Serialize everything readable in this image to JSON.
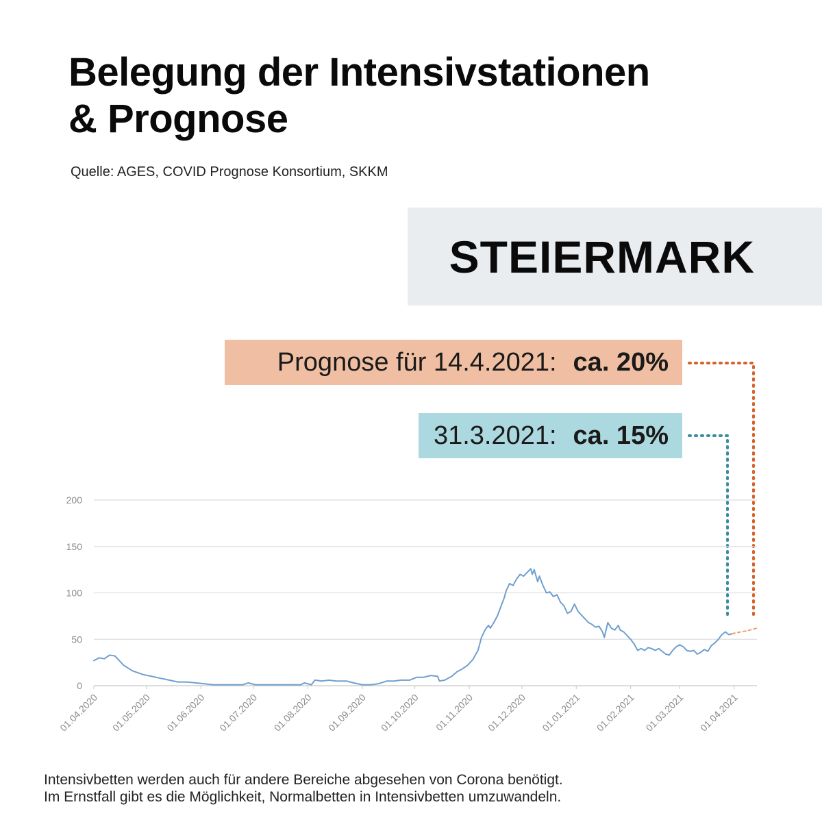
{
  "header": {
    "title_line1": "Belegung der Intensivstationen",
    "title_line2": "& Prognose",
    "source": "Quelle: AGES, COVID Prognose Konsortium, SKKM"
  },
  "region": "STEIERMARK",
  "callouts": {
    "forecast": {
      "label": "Prognose für 14.4.2021:",
      "value": "ca. 20%",
      "color": "#f0bfa3",
      "line_color": "#d4622a"
    },
    "current": {
      "label": "31.3.2021:",
      "value": "ca. 15%",
      "color": "#acd8df",
      "line_color": "#3a8ea0"
    }
  },
  "footnote": {
    "line1": "Intensivbetten werden auch für andere Bereiche abgesehen von Corona benötigt.",
    "line2": "Im Ernstfall gibt es die Möglichkeit, Normalbetten in Intensivbetten umzuwandeln."
  },
  "chart_data": {
    "type": "line",
    "title": "",
    "xlabel": "",
    "ylabel": "",
    "ylim": [
      0,
      200
    ],
    "yticks": [
      0,
      50,
      100,
      150,
      200
    ],
    "xtick_labels": [
      "01.04.2020",
      "01.05.2020",
      "01.06.2020",
      "01.07.2020",
      "01.08.2020",
      "01.09.2020",
      "01.10.2020",
      "01.11.2020",
      "01.12.2020",
      "01.01.2021",
      "01.02.2021",
      "01.03.2021",
      "01.04.2021"
    ],
    "xtick_days": [
      0,
      30,
      61,
      91,
      122,
      153,
      183,
      214,
      244,
      275,
      306,
      334,
      365
    ],
    "x_range_days": [
      0,
      378
    ],
    "series": [
      {
        "name": "Belegung Intensivstationen",
        "color": "#6f9fce",
        "points": [
          [
            0,
            27
          ],
          [
            3,
            30
          ],
          [
            6,
            29
          ],
          [
            9,
            33
          ],
          [
            12,
            32
          ],
          [
            14,
            28
          ],
          [
            17,
            22
          ],
          [
            22,
            16
          ],
          [
            28,
            12
          ],
          [
            33,
            10
          ],
          [
            38,
            8
          ],
          [
            43,
            6
          ],
          [
            48,
            4
          ],
          [
            53,
            4
          ],
          [
            58,
            3
          ],
          [
            63,
            2
          ],
          [
            68,
            1
          ],
          [
            73,
            1
          ],
          [
            80,
            1
          ],
          [
            85,
            1
          ],
          [
            88,
            3
          ],
          [
            92,
            1
          ],
          [
            100,
            1
          ],
          [
            110,
            1
          ],
          [
            118,
            1
          ],
          [
            120,
            3
          ],
          [
            124,
            1
          ],
          [
            126,
            6
          ],
          [
            130,
            5
          ],
          [
            134,
            6
          ],
          [
            138,
            5
          ],
          [
            144,
            5
          ],
          [
            148,
            3
          ],
          [
            153,
            1
          ],
          [
            158,
            1
          ],
          [
            162,
            2
          ],
          [
            167,
            5
          ],
          [
            171,
            5
          ],
          [
            175,
            6
          ],
          [
            180,
            6
          ],
          [
            184,
            9
          ],
          [
            188,
            9
          ],
          [
            192,
            11
          ],
          [
            196,
            10
          ],
          [
            197,
            5
          ],
          [
            200,
            6
          ],
          [
            204,
            10
          ],
          [
            207,
            15
          ],
          [
            210,
            18
          ],
          [
            213,
            22
          ],
          [
            216,
            28
          ],
          [
            219,
            38
          ],
          [
            221,
            52
          ],
          [
            223,
            60
          ],
          [
            225,
            65
          ],
          [
            226,
            62
          ],
          [
            228,
            68
          ],
          [
            230,
            75
          ],
          [
            232,
            85
          ],
          [
            234,
            95
          ],
          [
            235,
            102
          ],
          [
            237,
            110
          ],
          [
            239,
            108
          ],
          [
            241,
            115
          ],
          [
            243,
            120
          ],
          [
            245,
            118
          ],
          [
            247,
            122
          ],
          [
            249,
            126
          ],
          [
            250,
            120
          ],
          [
            251,
            125
          ],
          [
            253,
            112
          ],
          [
            254,
            118
          ],
          [
            256,
            108
          ],
          [
            258,
            100
          ],
          [
            260,
            101
          ],
          [
            262,
            96
          ],
          [
            264,
            98
          ],
          [
            266,
            90
          ],
          [
            268,
            86
          ],
          [
            270,
            78
          ],
          [
            272,
            80
          ],
          [
            274,
            88
          ],
          [
            276,
            80
          ],
          [
            278,
            76
          ],
          [
            280,
            72
          ],
          [
            282,
            68
          ],
          [
            284,
            66
          ],
          [
            286,
            63
          ],
          [
            288,
            64
          ],
          [
            290,
            58
          ],
          [
            291,
            52
          ],
          [
            293,
            68
          ],
          [
            295,
            62
          ],
          [
            297,
            60
          ],
          [
            299,
            65
          ],
          [
            300,
            60
          ],
          [
            302,
            58
          ],
          [
            304,
            54
          ],
          [
            306,
            50
          ],
          [
            308,
            45
          ],
          [
            310,
            38
          ],
          [
            312,
            40
          ],
          [
            314,
            38
          ],
          [
            316,
            41
          ],
          [
            318,
            40
          ],
          [
            320,
            38
          ],
          [
            322,
            40
          ],
          [
            324,
            37
          ],
          [
            326,
            34
          ],
          [
            328,
            33
          ],
          [
            330,
            38
          ],
          [
            332,
            42
          ],
          [
            334,
            44
          ],
          [
            336,
            42
          ],
          [
            338,
            38
          ],
          [
            340,
            37
          ],
          [
            342,
            38
          ],
          [
            344,
            34
          ],
          [
            346,
            36
          ],
          [
            348,
            39
          ],
          [
            350,
            37
          ],
          [
            352,
            43
          ],
          [
            354,
            46
          ],
          [
            356,
            50
          ],
          [
            358,
            55
          ],
          [
            360,
            58
          ],
          [
            362,
            55
          ],
          [
            364,
            56
          ]
        ]
      },
      {
        "name": "Prognose",
        "color": "#f0a070",
        "dashed": true,
        "points": [
          [
            364,
            56
          ],
          [
            366,
            57
          ],
          [
            372,
            59
          ],
          [
            378,
            62
          ]
        ]
      }
    ]
  }
}
